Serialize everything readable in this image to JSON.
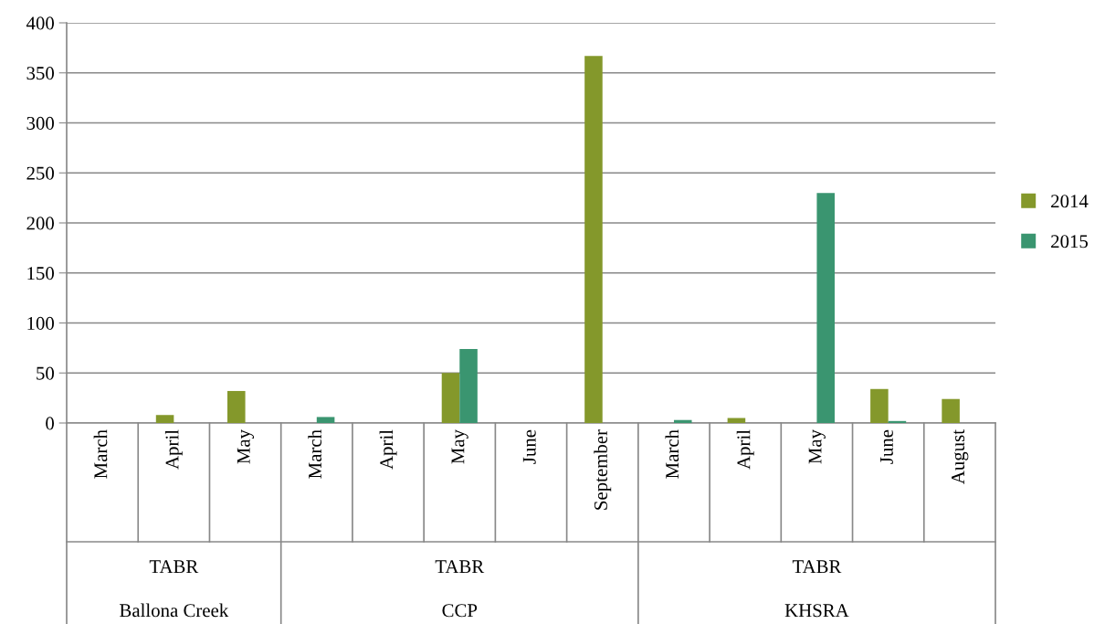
{
  "chart_data": {
    "type": "bar",
    "categories": [
      "March",
      "April",
      "May",
      "March",
      "April",
      "May",
      "June",
      "September",
      "March",
      "April",
      "May",
      "June",
      "August"
    ],
    "series": [
      {
        "name": "2014",
        "color": "#84982b",
        "values": [
          null,
          8,
          32,
          null,
          null,
          50,
          null,
          367,
          null,
          5,
          null,
          34,
          24
        ]
      },
      {
        "name": "2015",
        "color": "#3a9570",
        "values": [
          null,
          null,
          null,
          6,
          null,
          74,
          null,
          null,
          3,
          null,
          230,
          2,
          null
        ]
      }
    ],
    "annotations": [
      "TABR",
      "Ballona Creek",
      "TABR",
      "CCP",
      "TABR",
      "KHSRA"
    ],
    "ylim": [
      0,
      400
    ],
    "yticks": [
      0,
      50,
      100,
      150,
      200,
      250,
      300,
      350,
      400
    ],
    "grid": "y",
    "legend": "right"
  }
}
